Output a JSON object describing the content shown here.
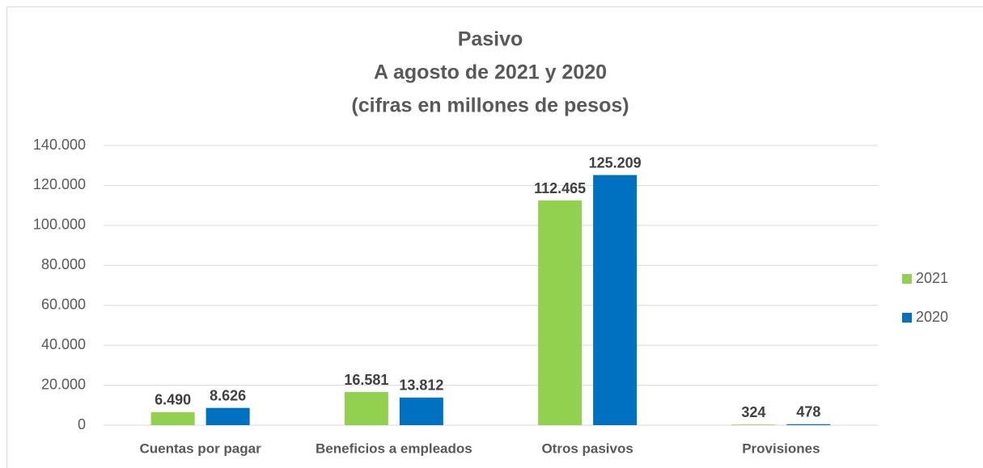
{
  "chart_data": {
    "type": "bar",
    "title": [
      "Pasivo",
      "A agosto de 2021 y 2020",
      "(cifras en millones de pesos)"
    ],
    "categories": [
      "Cuentas por pagar",
      "Beneficios a empleados",
      "Otros pasivos",
      "Provisiones"
    ],
    "series": [
      {
        "name": "2021",
        "color": "#92d050",
        "values": [
          6490,
          16581,
          112465,
          324
        ],
        "value_labels": [
          "6.490",
          "16.581",
          "112.465",
          "324"
        ]
      },
      {
        "name": "2020",
        "color": "#0070c0",
        "values": [
          8626,
          13812,
          125209,
          478
        ],
        "value_labels": [
          "8.626",
          "13.812",
          "125.209",
          "478"
        ]
      }
    ],
    "ylim": [
      0,
      140000
    ],
    "yticks": [
      0,
      {
        "value": 20000,
        "label": "20.000"
      },
      {
        "value": 40000,
        "label": "40.000"
      },
      {
        "value": 60000,
        "label": "60.000"
      },
      {
        "value": 80000,
        "label": "80.000"
      },
      {
        "value": 100000,
        "label": "100.000"
      },
      {
        "value": 120000,
        "label": "120.000"
      },
      {
        "value": 140000,
        "label": "140.000"
      }
    ],
    "grid": true,
    "legend": "right"
  }
}
